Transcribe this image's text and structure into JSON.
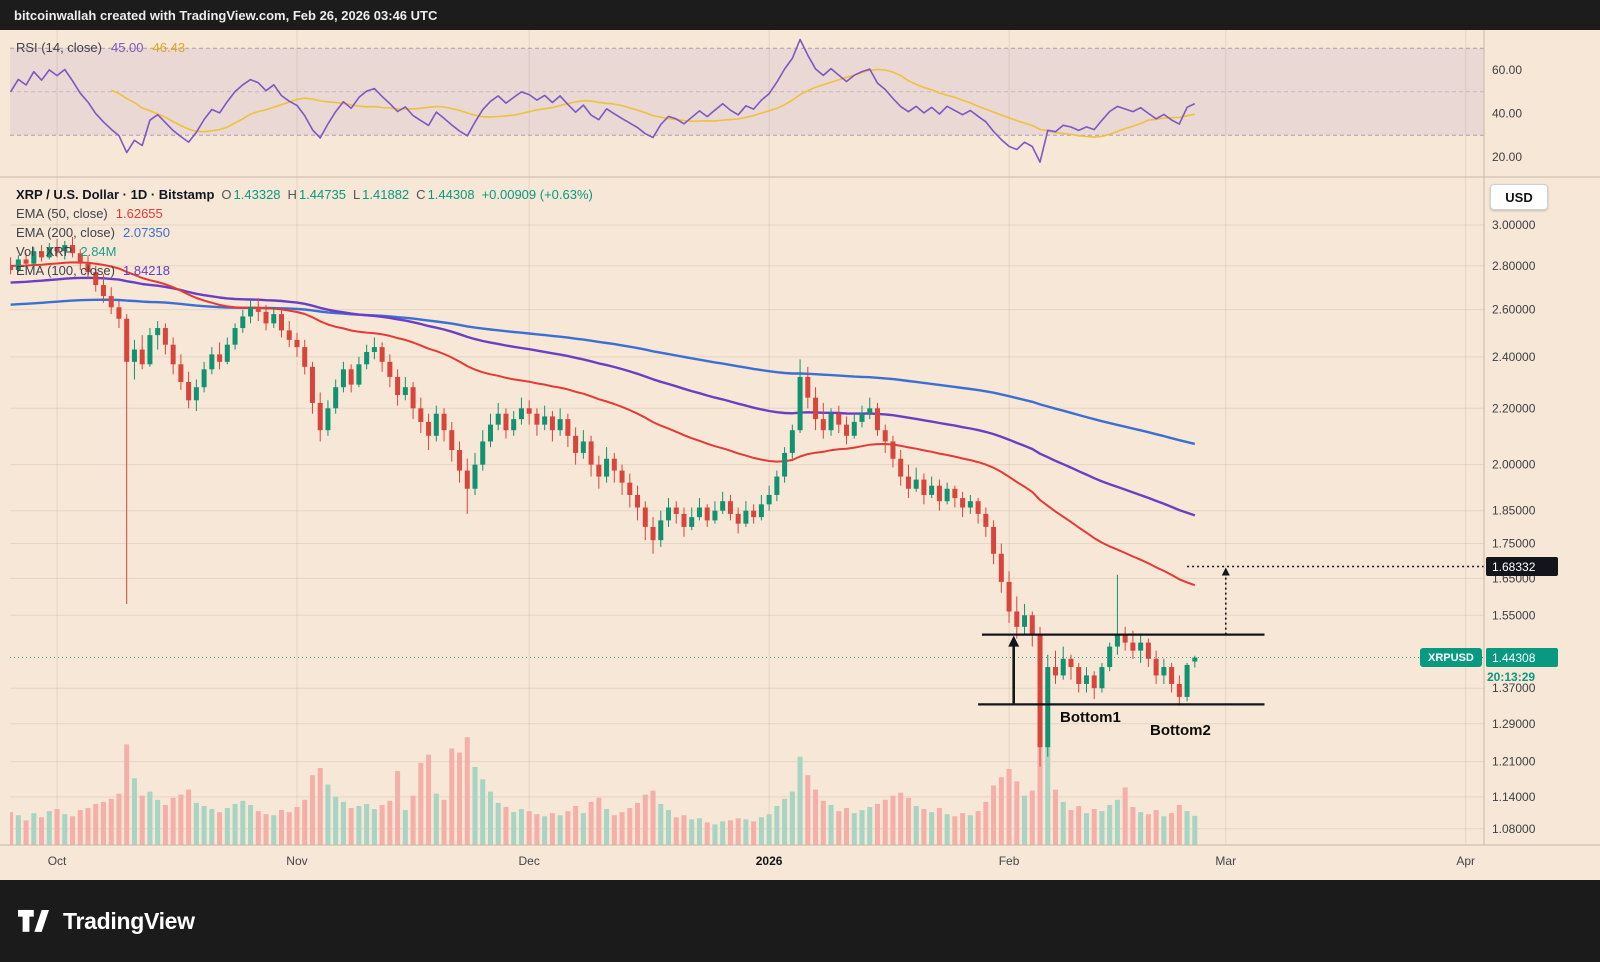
{
  "top_bar": {
    "attribution": "bitcoinwallah created with TradingView.com, Feb 26, 2026 03:46 UTC"
  },
  "bottom_bar": {
    "brand": "TradingView"
  },
  "colors": {
    "background": "#f7e7d6",
    "up": "#119270",
    "down": "#d8453c",
    "vol_up": "#a7d4c3",
    "vol_down": "#f3afa8",
    "ema50": "#e53935",
    "ema100": "#6a3fc3",
    "ema200": "#3b6fd4",
    "rsi": "#7e57c2",
    "rsi_ma": "#eec13e",
    "rsi_band": "rgba(126,87,194,0.10)",
    "accent": "#089981",
    "annotation": "#14151a",
    "axis_text": "#3c3f46",
    "grid": "rgba(90,60,30,0.10)"
  },
  "rsi_legend": {
    "name": "RSI (14, close)",
    "value": "45.00",
    "ma_value": "46.43"
  },
  "legend": {
    "title": "XRP / U.S. Dollar · 1D · Bitstamp",
    "ohlc": {
      "o_label": "O",
      "o": "1.43328",
      "h_label": "H",
      "h": "1.44735",
      "l_label": "L",
      "l": "1.41882",
      "c_label": "C",
      "c": "1.44308",
      "change": "+0.00909 (+0.63%)"
    },
    "indicators": [
      {
        "name": "EMA (50, close)",
        "value": "1.62655"
      },
      {
        "name": "EMA (200, close)",
        "value": "2.07350"
      },
      {
        "name": "Vol · XRP",
        "value": "2.84M"
      },
      {
        "name": "EMA (100, close)",
        "value": "1.84218"
      }
    ]
  },
  "price_axis": {
    "currency": "USD",
    "labels": [
      {
        "v": 3.0,
        "t": "3.00000"
      },
      {
        "v": 2.8,
        "t": "2.80000"
      },
      {
        "v": 2.6,
        "t": "2.60000"
      },
      {
        "v": 2.4,
        "t": "2.40000"
      },
      {
        "v": 2.2,
        "t": "2.20000"
      },
      {
        "v": 2.0,
        "t": "2.00000"
      },
      {
        "v": 1.85,
        "t": "1.85000"
      },
      {
        "v": 1.75,
        "t": "1.75000"
      },
      {
        "v": 1.65,
        "t": "1.65000"
      },
      {
        "v": 1.55,
        "t": "1.55000"
      },
      {
        "v": 1.37,
        "t": "1.37000"
      },
      {
        "v": 1.29,
        "t": "1.29000"
      },
      {
        "v": 1.21,
        "t": "1.21000"
      },
      {
        "v": 1.14,
        "t": "1.14000"
      },
      {
        "v": 1.08,
        "t": "1.08000"
      }
    ],
    "rsi_labels": [
      {
        "v": 60,
        "t": "60.00"
      },
      {
        "v": 40,
        "t": "40.00"
      },
      {
        "v": 20,
        "t": "20.00"
      }
    ],
    "symbol_tag": "XRPUSD",
    "last_price_label": "1.44308",
    "countdown": "20:13:29",
    "target_label": "1.68332"
  },
  "time_axis": {
    "labels": [
      {
        "i": 6,
        "label": "Oct"
      },
      {
        "i": 37,
        "label": "Nov"
      },
      {
        "i": 67,
        "label": "Dec"
      },
      {
        "i": 98,
        "label": "2026",
        "bold": true
      },
      {
        "i": 129,
        "label": "Feb"
      },
      {
        "i": 157,
        "label": "Mar"
      },
      {
        "i": 188,
        "label": "Apr"
      }
    ]
  },
  "annotations": {
    "range_top": {
      "price": 1.5,
      "i1": 125.5,
      "i2": 162
    },
    "range_bottom": {
      "price": 1.333,
      "i1": 125.0,
      "i2": 162
    },
    "arrow_up": {
      "i": 129.6,
      "from_price": 1.333,
      "to_price": 1.5
    },
    "target_line": {
      "price": 1.68332,
      "i1": 152,
      "i2": 190.4
    },
    "measure_vertical": {
      "i": 157,
      "from_price": 1.5,
      "to_price": 1.68332
    },
    "bottom1_label": "Bottom1",
    "bottom2_label": "Bottom2",
    "current_price_line": {
      "price": 1.44308
    }
  },
  "chart_data": [
    {
      "type": "candlestick",
      "symbol": "XRP/USD",
      "timeframe": "1D",
      "exchange": "Bitstamp",
      "scale": "logarithmic",
      "start_date": "2025-09-25",
      "ylim": [
        1.05,
        3.25
      ],
      "ema_overlays": [
        {
          "period": 50,
          "seed": 2.8,
          "last": 1.62655
        },
        {
          "period": 100,
          "seed": 2.72,
          "last": 1.84218
        },
        {
          "period": 200,
          "seed": 2.62,
          "last": 2.0735
        }
      ],
      "candles": [
        [
          2.8,
          2.84,
          2.76,
          2.78,
          3.2
        ],
        [
          2.78,
          2.85,
          2.77,
          2.83,
          2.9
        ],
        [
          2.83,
          2.86,
          2.79,
          2.81,
          2.4
        ],
        [
          2.81,
          2.89,
          2.8,
          2.87,
          3.1
        ],
        [
          2.87,
          2.9,
          2.82,
          2.84,
          2.7
        ],
        [
          2.84,
          2.91,
          2.83,
          2.89,
          3.3
        ],
        [
          2.89,
          2.93,
          2.84,
          2.87,
          3.5
        ],
        [
          2.87,
          2.92,
          2.83,
          2.9,
          3.0
        ],
        [
          2.9,
          2.94,
          2.84,
          2.86,
          2.8
        ],
        [
          2.86,
          2.88,
          2.78,
          2.81,
          3.4
        ],
        [
          2.81,
          2.85,
          2.74,
          2.77,
          3.6
        ],
        [
          2.77,
          2.8,
          2.68,
          2.71,
          4.0
        ],
        [
          2.71,
          2.76,
          2.63,
          2.66,
          4.2
        ],
        [
          2.66,
          2.7,
          2.58,
          2.61,
          4.5
        ],
        [
          2.61,
          2.64,
          2.52,
          2.56,
          5.0
        ],
        [
          2.56,
          2.58,
          1.58,
          2.38,
          9.8
        ],
        [
          2.38,
          2.47,
          2.31,
          2.43,
          6.5
        ],
        [
          2.43,
          2.49,
          2.35,
          2.37,
          4.8
        ],
        [
          2.37,
          2.52,
          2.36,
          2.49,
          5.2
        ],
        [
          2.49,
          2.55,
          2.43,
          2.52,
          4.4
        ],
        [
          2.52,
          2.54,
          2.41,
          2.45,
          3.9
        ],
        [
          2.45,
          2.48,
          2.33,
          2.37,
          4.6
        ],
        [
          2.37,
          2.41,
          2.27,
          2.3,
          4.9
        ],
        [
          2.3,
          2.34,
          2.2,
          2.23,
          5.4
        ],
        [
          2.23,
          2.31,
          2.19,
          2.28,
          4.1
        ],
        [
          2.28,
          2.38,
          2.26,
          2.35,
          3.8
        ],
        [
          2.35,
          2.44,
          2.33,
          2.41,
          3.5
        ],
        [
          2.41,
          2.46,
          2.35,
          2.38,
          3.2
        ],
        [
          2.38,
          2.48,
          2.37,
          2.45,
          3.6
        ],
        [
          2.45,
          2.54,
          2.43,
          2.52,
          4.0
        ],
        [
          2.52,
          2.6,
          2.5,
          2.57,
          4.3
        ],
        [
          2.57,
          2.64,
          2.54,
          2.61,
          3.9
        ],
        [
          2.61,
          2.65,
          2.55,
          2.59,
          3.3
        ],
        [
          2.59,
          2.62,
          2.51,
          2.54,
          3.0
        ],
        [
          2.54,
          2.61,
          2.52,
          2.58,
          2.9
        ],
        [
          2.58,
          2.6,
          2.48,
          2.51,
          3.4
        ],
        [
          2.51,
          2.55,
          2.44,
          2.47,
          3.2
        ],
        [
          2.47,
          2.5,
          2.4,
          2.44,
          3.7
        ],
        [
          2.44,
          2.47,
          2.33,
          2.36,
          4.4
        ],
        [
          2.36,
          2.38,
          2.18,
          2.22,
          6.8
        ],
        [
          2.22,
          2.26,
          2.08,
          2.12,
          7.5
        ],
        [
          2.12,
          2.23,
          2.1,
          2.2,
          5.9
        ],
        [
          2.2,
          2.31,
          2.18,
          2.28,
          4.7
        ],
        [
          2.28,
          2.38,
          2.26,
          2.35,
          4.2
        ],
        [
          2.35,
          2.37,
          2.26,
          2.29,
          3.6
        ],
        [
          2.29,
          2.4,
          2.28,
          2.37,
          3.8
        ],
        [
          2.37,
          2.45,
          2.35,
          2.42,
          4.0
        ],
        [
          2.42,
          2.48,
          2.39,
          2.44,
          3.5
        ],
        [
          2.44,
          2.46,
          2.34,
          2.38,
          3.9
        ],
        [
          2.38,
          2.41,
          2.28,
          2.32,
          4.3
        ],
        [
          2.32,
          2.35,
          2.21,
          2.25,
          7.2
        ],
        [
          2.25,
          2.32,
          2.23,
          2.28,
          3.4
        ],
        [
          2.28,
          2.3,
          2.16,
          2.2,
          4.8
        ],
        [
          2.2,
          2.24,
          2.11,
          2.15,
          8.0
        ],
        [
          2.15,
          2.18,
          2.05,
          2.1,
          8.8
        ],
        [
          2.1,
          2.21,
          2.08,
          2.18,
          5.0
        ],
        [
          2.18,
          2.2,
          2.08,
          2.12,
          4.4
        ],
        [
          2.12,
          2.15,
          2.01,
          2.05,
          9.4
        ],
        [
          2.05,
          2.08,
          1.94,
          1.98,
          9.0
        ],
        [
          1.98,
          2.02,
          1.84,
          1.92,
          10.5
        ],
        [
          1.92,
          2.04,
          1.9,
          2.0,
          7.6
        ],
        [
          2.0,
          2.12,
          1.98,
          2.08,
          6.4
        ],
        [
          2.08,
          2.18,
          2.06,
          2.14,
          5.2
        ],
        [
          2.14,
          2.22,
          2.12,
          2.18,
          4.1
        ],
        [
          2.18,
          2.2,
          2.09,
          2.12,
          3.7
        ],
        [
          2.12,
          2.19,
          2.1,
          2.16,
          3.2
        ],
        [
          2.16,
          2.24,
          2.14,
          2.2,
          3.5
        ],
        [
          2.2,
          2.23,
          2.14,
          2.18,
          3.3
        ],
        [
          2.18,
          2.2,
          2.1,
          2.14,
          3.0
        ],
        [
          2.14,
          2.21,
          2.12,
          2.17,
          2.8
        ],
        [
          2.17,
          2.19,
          2.08,
          2.12,
          3.1
        ],
        [
          2.12,
          2.2,
          2.1,
          2.16,
          2.9
        ],
        [
          2.16,
          2.18,
          2.06,
          2.1,
          3.3
        ],
        [
          2.1,
          2.13,
          2.0,
          2.04,
          3.8
        ],
        [
          2.04,
          2.12,
          2.02,
          2.08,
          3.1
        ],
        [
          2.08,
          2.1,
          1.96,
          2.0,
          4.2
        ],
        [
          2.0,
          2.03,
          1.92,
          1.96,
          4.6
        ],
        [
          1.96,
          2.06,
          1.94,
          2.02,
          3.5
        ],
        [
          2.02,
          2.04,
          1.94,
          1.98,
          2.9
        ],
        [
          1.98,
          2.0,
          1.9,
          1.94,
          3.2
        ],
        [
          1.94,
          1.97,
          1.86,
          1.9,
          3.6
        ],
        [
          1.9,
          1.93,
          1.82,
          1.86,
          4.1
        ],
        [
          1.86,
          1.88,
          1.76,
          1.8,
          4.9
        ],
        [
          1.8,
          1.83,
          1.72,
          1.76,
          5.3
        ],
        [
          1.76,
          1.85,
          1.74,
          1.82,
          4.0
        ],
        [
          1.82,
          1.89,
          1.8,
          1.86,
          3.4
        ],
        [
          1.86,
          1.88,
          1.81,
          1.84,
          2.7
        ],
        [
          1.84,
          1.86,
          1.77,
          1.8,
          2.9
        ],
        [
          1.8,
          1.86,
          1.79,
          1.83,
          2.5
        ],
        [
          1.83,
          1.89,
          1.82,
          1.86,
          2.6
        ],
        [
          1.86,
          1.87,
          1.8,
          1.82,
          2.2
        ],
        [
          1.82,
          1.88,
          1.81,
          1.85,
          2.0
        ],
        [
          1.85,
          1.91,
          1.84,
          1.88,
          2.3
        ],
        [
          1.88,
          1.9,
          1.82,
          1.84,
          2.4
        ],
        [
          1.84,
          1.86,
          1.78,
          1.81,
          2.6
        ],
        [
          1.81,
          1.88,
          1.8,
          1.85,
          2.5
        ],
        [
          1.85,
          1.87,
          1.81,
          1.83,
          2.3
        ],
        [
          1.83,
          1.9,
          1.82,
          1.87,
          2.7
        ],
        [
          1.87,
          1.93,
          1.85,
          1.9,
          3.0
        ],
        [
          1.9,
          1.98,
          1.88,
          1.96,
          3.8
        ],
        [
          1.96,
          2.06,
          1.94,
          2.04,
          4.5
        ],
        [
          2.04,
          2.14,
          2.02,
          2.12,
          5.2
        ],
        [
          2.12,
          2.39,
          2.11,
          2.32,
          8.6
        ],
        [
          2.32,
          2.36,
          2.2,
          2.24,
          6.8
        ],
        [
          2.24,
          2.28,
          2.12,
          2.16,
          5.4
        ],
        [
          2.16,
          2.22,
          2.09,
          2.12,
          4.3
        ],
        [
          2.12,
          2.2,
          2.1,
          2.18,
          3.9
        ],
        [
          2.18,
          2.21,
          2.11,
          2.14,
          3.3
        ],
        [
          2.14,
          2.17,
          2.07,
          2.1,
          3.6
        ],
        [
          2.1,
          2.18,
          2.09,
          2.15,
          3.1
        ],
        [
          2.15,
          2.21,
          2.13,
          2.18,
          3.4
        ],
        [
          2.18,
          2.24,
          2.16,
          2.2,
          3.7
        ],
        [
          2.2,
          2.22,
          2.1,
          2.12,
          4.0
        ],
        [
          2.12,
          2.14,
          2.04,
          2.08,
          4.4
        ],
        [
          2.08,
          2.1,
          1.99,
          2.02,
          4.8
        ],
        [
          2.02,
          2.05,
          1.93,
          1.96,
          5.1
        ],
        [
          1.96,
          2.0,
          1.89,
          1.92,
          4.6
        ],
        [
          1.92,
          1.99,
          1.91,
          1.95,
          3.8
        ],
        [
          1.95,
          1.97,
          1.87,
          1.9,
          3.5
        ],
        [
          1.9,
          1.96,
          1.89,
          1.93,
          3.2
        ],
        [
          1.93,
          1.95,
          1.85,
          1.88,
          3.6
        ],
        [
          1.88,
          1.94,
          1.87,
          1.92,
          3.0
        ],
        [
          1.92,
          1.93,
          1.86,
          1.89,
          2.8
        ],
        [
          1.89,
          1.91,
          1.83,
          1.86,
          3.1
        ],
        [
          1.86,
          1.9,
          1.84,
          1.88,
          2.9
        ],
        [
          1.88,
          1.89,
          1.81,
          1.84,
          3.3
        ],
        [
          1.84,
          1.86,
          1.77,
          1.8,
          4.2
        ],
        [
          1.8,
          1.82,
          1.69,
          1.72,
          5.8
        ],
        [
          1.72,
          1.75,
          1.61,
          1.64,
          6.6
        ],
        [
          1.64,
          1.67,
          1.53,
          1.56,
          7.4
        ],
        [
          1.56,
          1.6,
          1.49,
          1.52,
          6.2
        ],
        [
          1.52,
          1.58,
          1.5,
          1.55,
          4.8
        ],
        [
          1.55,
          1.56,
          1.47,
          1.5,
          5.3
        ],
        [
          1.5,
          1.52,
          1.2,
          1.24,
          11.2
        ],
        [
          1.24,
          1.45,
          1.22,
          1.42,
          9.6
        ],
        [
          1.42,
          1.46,
          1.38,
          1.4,
          5.4
        ],
        [
          1.4,
          1.47,
          1.39,
          1.44,
          4.2
        ],
        [
          1.44,
          1.45,
          1.39,
          1.42,
          3.4
        ],
        [
          1.42,
          1.43,
          1.36,
          1.38,
          3.8
        ],
        [
          1.38,
          1.42,
          1.36,
          1.4,
          3.1
        ],
        [
          1.4,
          1.41,
          1.345,
          1.37,
          3.5
        ],
        [
          1.37,
          1.43,
          1.36,
          1.42,
          3.3
        ],
        [
          1.42,
          1.48,
          1.41,
          1.47,
          3.9
        ],
        [
          1.47,
          1.66,
          1.45,
          1.5,
          4.4
        ],
        [
          1.5,
          1.52,
          1.46,
          1.48,
          5.6
        ],
        [
          1.48,
          1.51,
          1.44,
          1.46,
          3.7
        ],
        [
          1.46,
          1.5,
          1.43,
          1.48,
          3.2
        ],
        [
          1.48,
          1.49,
          1.42,
          1.44,
          3.0
        ],
        [
          1.44,
          1.46,
          1.38,
          1.4,
          3.4
        ],
        [
          1.4,
          1.44,
          1.38,
          1.42,
          2.8
        ],
        [
          1.42,
          1.43,
          1.36,
          1.38,
          3.1
        ],
        [
          1.38,
          1.4,
          1.33,
          1.35,
          3.9
        ],
        [
          1.35,
          1.43,
          1.34,
          1.425,
          3.3
        ],
        [
          1.43328,
          1.44735,
          1.41882,
          1.44308,
          2.84
        ]
      ]
    },
    {
      "type": "line",
      "name": "RSI",
      "params": {
        "length": 14,
        "source": "close",
        "ma_length": 14
      },
      "derived_from": "candles",
      "levels": [
        70,
        50,
        30
      ],
      "axis_range": [
        15,
        80
      ],
      "current": 45.0,
      "ma_current": 46.43
    }
  ]
}
